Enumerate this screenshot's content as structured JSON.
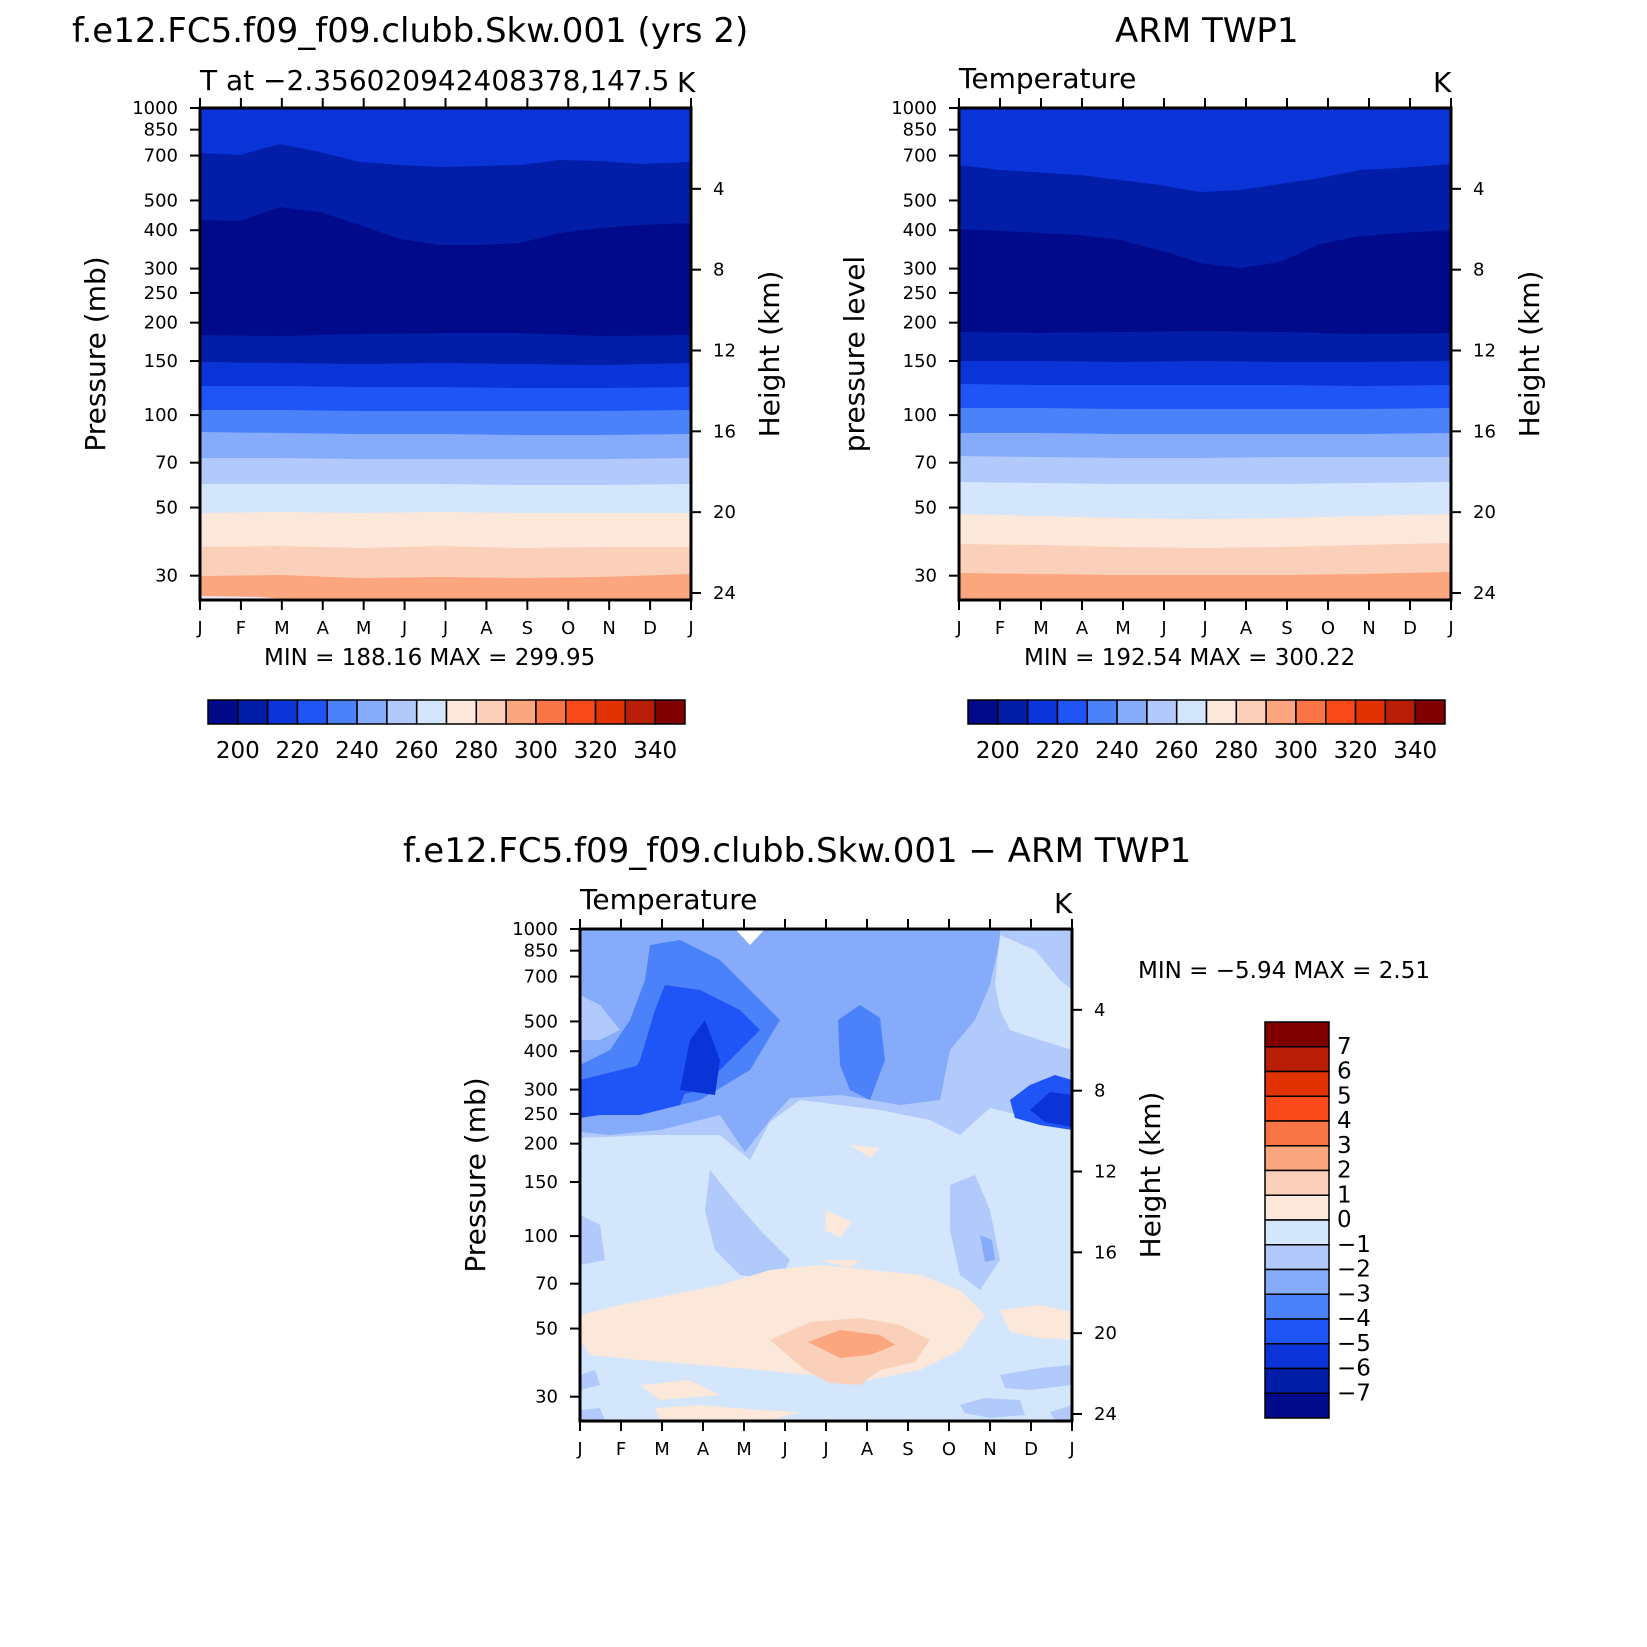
{
  "chart_data": [
    {
      "type": "heatmap",
      "id": "model",
      "title": "f.e12.FC5.f09_f09.clubb.Skw.001 (yrs 2)",
      "subtitle_left": "T at −2.356020942408378,147.5",
      "units": "K",
      "ylabel": "Pressure (mb)",
      "y2label": "Height (km)",
      "stats": "MIN = 188.16 MAX = 299.95",
      "months": [
        "J",
        "F",
        "M",
        "A",
        "M",
        "J",
        "J",
        "A",
        "S",
        "O",
        "N",
        "D",
        "J"
      ],
      "pressure_ticks": [
        "30",
        "50",
        "70",
        "100",
        "150",
        "200",
        "250",
        "300",
        "400",
        "500",
        "700",
        "850",
        "1000"
      ],
      "height_ticks": [
        "24",
        "20",
        "16",
        "12",
        "8",
        "4"
      ],
      "colorbar_labels": [
        "200",
        "220",
        "240",
        "260",
        "280",
        "300",
        "320",
        "340"
      ],
      "band_colors": [
        "#e8e8f5",
        "#fbd0bb",
        "#fbe8da",
        "#d3e6fb",
        "#b1c9fb",
        "#86abfa",
        "#4b82f9",
        "#1f55f6",
        "#0a34d8",
        "#021ea8",
        "#000a8a",
        "#021ea8",
        "#0a34d8"
      ],
      "stats_min": 188.16,
      "stats_max": 299.95
    },
    {
      "type": "heatmap",
      "id": "obs",
      "title": "ARM TWP1",
      "subtitle_left": "Temperature",
      "units": "K",
      "ylabel": "pressure level",
      "y2label": "Height (km)",
      "stats": "MIN = 192.54 MAX = 300.22",
      "months": [
        "J",
        "F",
        "M",
        "A",
        "M",
        "J",
        "J",
        "A",
        "S",
        "O",
        "N",
        "D",
        "J"
      ],
      "pressure_ticks": [
        "30",
        "50",
        "70",
        "100",
        "150",
        "200",
        "250",
        "300",
        "400",
        "500",
        "700",
        "850",
        "1000"
      ],
      "height_ticks": [
        "24",
        "20",
        "16",
        "12",
        "8",
        "4"
      ],
      "colorbar_labels": [
        "200",
        "220",
        "240",
        "260",
        "280",
        "300",
        "320",
        "340"
      ],
      "stats_min": 192.54,
      "stats_max": 300.22
    },
    {
      "type": "heatmap",
      "id": "diff",
      "title": "f.e12.FC5.f09_f09.clubb.Skw.001 − ARM TWP1",
      "subtitle_left": "Temperature",
      "units": "K",
      "ylabel": "Pressure (mb)",
      "y2label": "Height (km)",
      "stats": "MIN =   −5.94 MAX =    2.51",
      "months": [
        "J",
        "F",
        "M",
        "A",
        "M",
        "J",
        "J",
        "A",
        "S",
        "O",
        "N",
        "D",
        "J"
      ],
      "pressure_ticks": [
        "30",
        "50",
        "70",
        "100",
        "150",
        "200",
        "250",
        "300",
        "400",
        "500",
        "700",
        "850",
        "1000"
      ],
      "height_ticks": [
        "24",
        "20",
        "16",
        "12",
        "8",
        "4"
      ],
      "colorbar_labels": [
        "7",
        "6",
        "5",
        "4",
        "3",
        "2",
        "1",
        "0",
        "−1",
        "−2",
        "−3",
        "−4",
        "−5",
        "−6",
        "−7"
      ],
      "stats_min": -5.94,
      "stats_max": 2.51
    }
  ],
  "colors": {
    "temp_scale": [
      "#000a8a",
      "#021ea8",
      "#0a34d8",
      "#1f55f6",
      "#4b82f9",
      "#86abfa",
      "#b1c9fb",
      "#d3e6fb",
      "#fbe8da",
      "#fbd0bb",
      "#fba67f",
      "#fa7545",
      "#f9481a",
      "#e03202",
      "#b81f06",
      "#800000"
    ],
    "diff_scale": [
      "#800000",
      "#b81f06",
      "#e03202",
      "#f9481a",
      "#fa7545",
      "#fba67f",
      "#fbd0bb",
      "#fbe8da",
      "#d3e6fb",
      "#b1c9fb",
      "#86abfa",
      "#4b82f9",
      "#1f55f6",
      "#0a34d8",
      "#021ea8",
      "#000a8a"
    ]
  }
}
